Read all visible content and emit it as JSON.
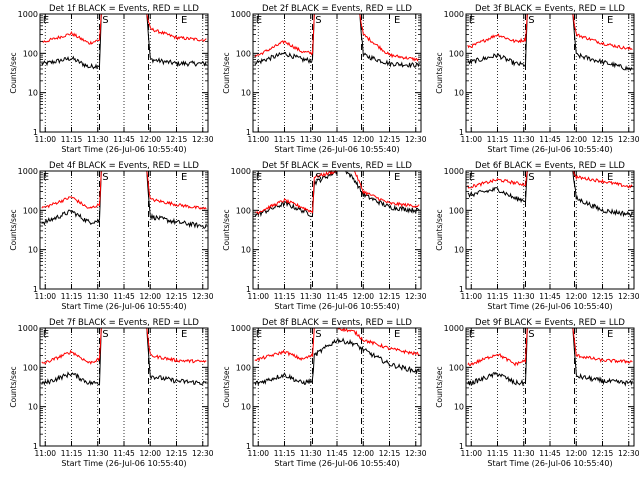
{
  "figure": {
    "ylabel": "Counts/sec",
    "xlabel": "Start Time (26-Jul-06 10:55:40)",
    "x_ticks": [
      "11:00",
      "11:15",
      "11:30",
      "11:45",
      "12:00",
      "12:15",
      "12:30"
    ],
    "y_ticks": [
      "1",
      "10",
      "100",
      "1000"
    ],
    "colors": {
      "events": "#000000",
      "lld": "#ff0000"
    }
  },
  "chart_data": [
    {
      "type": "line",
      "title": "Det 1f BLACK = Events, RED = LLD",
      "x_range": [
        "10:57",
        "12:33"
      ],
      "ylim": [
        1,
        1000
      ],
      "y_scale": "log",
      "xlabel": "Start Time (26-Jul-06 10:55:40)",
      "ylabel": "Counts/sec",
      "markers": [
        {
          "label": "E",
          "time": "10:58"
        },
        {
          "label": "S",
          "time": "11:32"
        },
        {
          "label": "E",
          "time": "12:17"
        }
      ],
      "dashed_lines": [
        "11:31",
        "11:59"
      ],
      "series": [
        {
          "name": "Events",
          "color": "#000000",
          "x": [
            "11:00",
            "11:15",
            "11:25",
            "11:31",
            "11:32",
            "11:50",
            "11:58",
            "12:00",
            "12:15",
            "12:30"
          ],
          "values": [
            55,
            75,
            45,
            50,
            1000,
            1000,
            1000,
            70,
            55,
            55
          ]
        },
        {
          "name": "LLD",
          "color": "#ff0000",
          "x": [
            "11:00",
            "11:15",
            "11:25",
            "11:31",
            "11:32",
            "11:50",
            "11:58",
            "12:00",
            "12:15",
            "12:30"
          ],
          "values": [
            200,
            320,
            180,
            220,
            1000,
            1000,
            1000,
            420,
            250,
            220
          ]
        }
      ]
    },
    {
      "type": "line",
      "title": "Det 2f BLACK = Events, RED = LLD",
      "x_range": [
        "10:57",
        "12:33"
      ],
      "ylim": [
        1,
        1000
      ],
      "y_scale": "log",
      "xlabel": "Start Time (26-Jul-06 10:55:40)",
      "ylabel": "Counts/sec",
      "markers": [
        {
          "label": "E",
          "time": "10:58"
        },
        {
          "label": "S",
          "time": "11:32"
        },
        {
          "label": "E",
          "time": "12:17"
        }
      ],
      "dashed_lines": [
        "11:31",
        "11:59"
      ],
      "series": [
        {
          "name": "Events",
          "color": "#000000",
          "x": [
            "11:00",
            "11:15",
            "11:25",
            "11:31",
            "11:32",
            "11:50",
            "11:58",
            "12:00",
            "12:15",
            "12:30"
          ],
          "values": [
            60,
            100,
            70,
            65,
            1000,
            1000,
            1000,
            90,
            55,
            50
          ]
        },
        {
          "name": "LLD",
          "color": "#ff0000",
          "x": [
            "11:00",
            "11:15",
            "11:25",
            "11:31",
            "11:32",
            "11:50",
            "11:58",
            "12:00",
            "12:15",
            "12:30"
          ],
          "values": [
            90,
            200,
            110,
            100,
            1000,
            1000,
            1000,
            300,
            90,
            70
          ]
        }
      ]
    },
    {
      "type": "line",
      "title": "Det 3f BLACK = Events, RED = LLD",
      "x_range": [
        "10:57",
        "12:33"
      ],
      "ylim": [
        1,
        1000
      ],
      "y_scale": "log",
      "xlabel": "Start Time (26-Jul-06 10:55:40)",
      "ylabel": "Counts/sec",
      "markers": [
        {
          "label": "E",
          "time": "10:58"
        },
        {
          "label": "S",
          "time": "11:32"
        },
        {
          "label": "E",
          "time": "12:17"
        }
      ],
      "dashed_lines": [
        "11:31",
        "11:59"
      ],
      "series": [
        {
          "name": "Events",
          "color": "#000000",
          "x": [
            "11:00",
            "11:15",
            "11:25",
            "11:31",
            "11:32",
            "11:50",
            "11:58",
            "12:00",
            "12:15",
            "12:30"
          ],
          "values": [
            60,
            90,
            55,
            50,
            1000,
            1000,
            1000,
            90,
            60,
            40
          ]
        },
        {
          "name": "LLD",
          "color": "#ff0000",
          "x": [
            "11:00",
            "11:15",
            "11:25",
            "11:31",
            "11:32",
            "11:50",
            "11:58",
            "12:00",
            "12:15",
            "12:30"
          ],
          "values": [
            150,
            300,
            200,
            220,
            1000,
            1000,
            1000,
            300,
            180,
            130
          ]
        }
      ]
    },
    {
      "type": "line",
      "title": "Det 4f BLACK = Events, RED = LLD",
      "x_range": [
        "10:57",
        "12:33"
      ],
      "ylim": [
        1,
        1000
      ],
      "y_scale": "log",
      "xlabel": "Start Time (26-Jul-06 10:55:40)",
      "ylabel": "Counts/sec",
      "markers": [
        {
          "label": "E",
          "time": "10:58"
        },
        {
          "label": "S",
          "time": "11:32"
        },
        {
          "label": "E",
          "time": "12:17"
        }
      ],
      "dashed_lines": [
        "11:31",
        "11:59"
      ],
      "series": [
        {
          "name": "Events",
          "color": "#000000",
          "x": [
            "11:00",
            "11:15",
            "11:25",
            "11:31",
            "11:32",
            "11:50",
            "11:58",
            "12:00",
            "12:15",
            "12:30"
          ],
          "values": [
            50,
            95,
            50,
            55,
            1000,
            1000,
            1000,
            70,
            50,
            40
          ]
        },
        {
          "name": "LLD",
          "color": "#ff0000",
          "x": [
            "11:00",
            "11:15",
            "11:25",
            "11:31",
            "11:32",
            "11:50",
            "11:58",
            "12:00",
            "12:15",
            "12:30"
          ],
          "values": [
            120,
            220,
            110,
            140,
            1000,
            1000,
            1000,
            190,
            140,
            110
          ]
        }
      ]
    },
    {
      "type": "line",
      "title": "Det 5f BLACK = Events, RED = LLD",
      "x_range": [
        "10:57",
        "12:33"
      ],
      "ylim": [
        1,
        1000
      ],
      "y_scale": "log",
      "xlabel": "Start Time (26-Jul-06 10:55:40)",
      "ylabel": "Counts/sec",
      "markers": [
        {
          "label": "E",
          "time": "10:58"
        },
        {
          "label": "S",
          "time": "11:32"
        },
        {
          "label": "E",
          "time": "12:17"
        }
      ],
      "dashed_lines": [
        "11:31",
        "11:59"
      ],
      "series": [
        {
          "name": "Events",
          "color": "#000000",
          "x": [
            "11:00",
            "11:15",
            "11:25",
            "11:31",
            "11:32",
            "11:45",
            "11:50",
            "11:55",
            "12:00",
            "12:15",
            "12:30"
          ],
          "values": [
            80,
            150,
            100,
            75,
            500,
            1000,
            1000,
            600,
            250,
            120,
            100
          ]
        },
        {
          "name": "LLD",
          "color": "#ff0000",
          "x": [
            "11:00",
            "11:15",
            "11:25",
            "11:31",
            "11:32",
            "11:45",
            "11:50",
            "11:55",
            "12:00",
            "12:15",
            "12:30"
          ],
          "values": [
            90,
            180,
            120,
            90,
            700,
            1000,
            1000,
            1000,
            300,
            150,
            130
          ]
        }
      ]
    },
    {
      "type": "line",
      "title": "Det 6f BLACK = Events, RED = LLD",
      "x_range": [
        "10:57",
        "12:33"
      ],
      "ylim": [
        1,
        1000
      ],
      "y_scale": "log",
      "xlabel": "Start Time (26-Jul-06 10:55:40)",
      "ylabel": "Counts/sec",
      "markers": [
        {
          "label": "E",
          "time": "10:58"
        },
        {
          "label": "S",
          "time": "11:32"
        },
        {
          "label": "E",
          "time": "12:17"
        }
      ],
      "dashed_lines": [
        "11:31",
        "11:59"
      ],
      "series": [
        {
          "name": "Events",
          "color": "#000000",
          "x": [
            "11:00",
            "11:15",
            "11:25",
            "11:31",
            "11:32",
            "11:50",
            "11:58",
            "12:00",
            "12:15",
            "12:30"
          ],
          "values": [
            250,
            350,
            200,
            180,
            1000,
            1000,
            1000,
            200,
            100,
            80
          ]
        },
        {
          "name": "LLD",
          "color": "#ff0000",
          "x": [
            "11:00",
            "11:15",
            "11:25",
            "11:31",
            "11:32",
            "11:50",
            "11:58",
            "12:00",
            "12:15",
            "12:30"
          ],
          "values": [
            400,
            600,
            500,
            450,
            1000,
            1000,
            1000,
            700,
            550,
            400
          ]
        }
      ]
    },
    {
      "type": "line",
      "title": "Det 7f BLACK = Events, RED = LLD",
      "x_range": [
        "10:57",
        "12:33"
      ],
      "ylim": [
        1,
        1000
      ],
      "y_scale": "log",
      "xlabel": "Start Time (26-Jul-06 10:55:40)",
      "ylabel": "Counts/sec",
      "markers": [
        {
          "label": "E",
          "time": "10:58"
        },
        {
          "label": "S",
          "time": "11:32"
        },
        {
          "label": "E",
          "time": "12:17"
        }
      ],
      "dashed_lines": [
        "11:31",
        "11:59"
      ],
      "series": [
        {
          "name": "Events",
          "color": "#000000",
          "x": [
            "11:00",
            "11:15",
            "11:25",
            "11:31",
            "11:32",
            "11:50",
            "11:58",
            "12:00",
            "12:15",
            "12:30"
          ],
          "values": [
            40,
            70,
            40,
            40,
            1000,
            1000,
            1000,
            60,
            45,
            40
          ]
        },
        {
          "name": "LLD",
          "color": "#ff0000",
          "x": [
            "11:00",
            "11:15",
            "11:25",
            "11:31",
            "11:32",
            "11:50",
            "11:58",
            "12:00",
            "12:15",
            "12:30"
          ],
          "values": [
            130,
            250,
            130,
            160,
            1000,
            1000,
            1000,
            200,
            150,
            140
          ]
        }
      ]
    },
    {
      "type": "line",
      "title": "Det 8f BLACK = Events, RED = LLD",
      "x_range": [
        "10:57",
        "12:33"
      ],
      "ylim": [
        1,
        1000
      ],
      "y_scale": "log",
      "xlabel": "Start Time (26-Jul-06 10:55:40)",
      "ylabel": "Counts/sec",
      "markers": [
        {
          "label": "E",
          "time": "10:58"
        },
        {
          "label": "S",
          "time": "11:32"
        },
        {
          "label": "E",
          "time": "12:17"
        }
      ],
      "dashed_lines": [
        "11:31",
        "11:59"
      ],
      "series": [
        {
          "name": "Events",
          "color": "#000000",
          "x": [
            "11:00",
            "11:15",
            "11:25",
            "11:31",
            "11:32",
            "11:45",
            "11:55",
            "12:00",
            "12:15",
            "12:30"
          ],
          "values": [
            40,
            65,
            40,
            45,
            200,
            500,
            400,
            280,
            120,
            80
          ]
        },
        {
          "name": "LLD",
          "color": "#ff0000",
          "x": [
            "11:00",
            "11:15",
            "11:25",
            "11:31",
            "11:32",
            "11:45",
            "11:55",
            "12:00",
            "12:15",
            "12:30"
          ],
          "values": [
            160,
            250,
            160,
            200,
            1000,
            1000,
            800,
            500,
            300,
            220
          ]
        }
      ]
    },
    {
      "type": "line",
      "title": "Det 9f BLACK = Events, RED = LLD",
      "x_range": [
        "10:57",
        "12:33"
      ],
      "ylim": [
        1,
        1000
      ],
      "y_scale": "log",
      "xlabel": "Start Time (26-Jul-06 10:55:40)",
      "ylabel": "Counts/sec",
      "markers": [
        {
          "label": "E",
          "time": "10:58"
        },
        {
          "label": "S",
          "time": "11:32"
        },
        {
          "label": "E",
          "time": "12:17"
        }
      ],
      "dashed_lines": [
        "11:31",
        "11:59"
      ],
      "series": [
        {
          "name": "Events",
          "color": "#000000",
          "x": [
            "11:00",
            "11:15",
            "11:25",
            "11:31",
            "11:32",
            "11:50",
            "11:58",
            "12:00",
            "12:15",
            "12:30"
          ],
          "values": [
            40,
            70,
            40,
            40,
            1000,
            1000,
            1000,
            60,
            45,
            40
          ]
        },
        {
          "name": "LLD",
          "color": "#ff0000",
          "x": [
            "11:00",
            "11:15",
            "11:25",
            "11:31",
            "11:32",
            "11:50",
            "11:58",
            "12:00",
            "12:15",
            "12:30"
          ],
          "values": [
            120,
            220,
            120,
            150,
            1000,
            1000,
            1000,
            200,
            150,
            140
          ]
        }
      ]
    }
  ]
}
